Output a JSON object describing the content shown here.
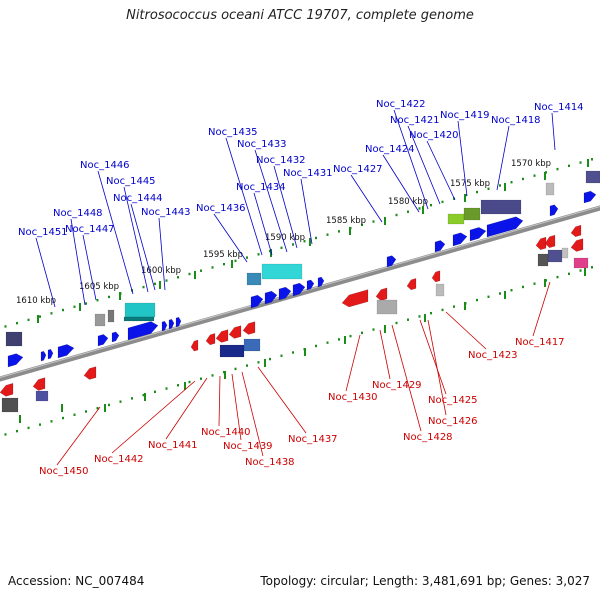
{
  "title": "Nitrosococcus oceani ATCC 19707, complete genome",
  "footer": {
    "accession": "Accession: NC_007484",
    "summary": "Topology: circular; Length: 3,481,691 bp; Genes: 3,027"
  },
  "colors": {
    "forward_label": "#0000cc",
    "reverse_label": "#cc0000",
    "forward_gene": "#0a14e8",
    "reverse_gene": "#e21a1a",
    "backbone": "#8c8c8c",
    "tick_dots": "#1a8c1a"
  },
  "scale_ticks": [
    "1570 kbp",
    "1575 kbp",
    "1580 kbp",
    "1585 kbp",
    "1590 kbp",
    "1595 kbp",
    "1600 kbp",
    "1605 kbp",
    "1610 kbp"
  ],
  "forward_genes": [
    "Noc_1414",
    "Noc_1418",
    "Noc_1419",
    "Noc_1420",
    "Noc_1421",
    "Noc_1422",
    "Noc_1424",
    "Noc_1427",
    "Noc_1431",
    "Noc_1432",
    "Noc_1433",
    "Noc_1434",
    "Noc_1435",
    "Noc_1436",
    "Noc_1443",
    "Noc_1444",
    "Noc_1445",
    "Noc_1446",
    "Noc_1447",
    "Noc_1448",
    "Noc_1451"
  ],
  "reverse_genes": [
    "Noc_1417",
    "Noc_1423",
    "Noc_1425",
    "Noc_1426",
    "Noc_1428",
    "Noc_1429",
    "Noc_1430",
    "Noc_1437",
    "Noc_1438",
    "Noc_1439",
    "Noc_1440",
    "Noc_1441",
    "Noc_1442",
    "Noc_1450"
  ]
}
